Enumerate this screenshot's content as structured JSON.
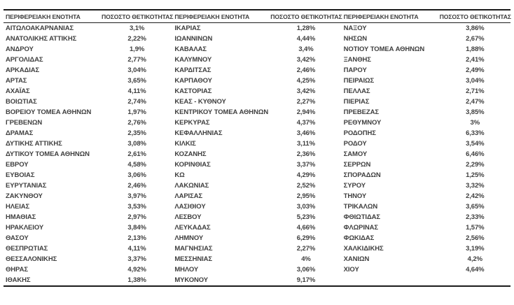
{
  "table": {
    "text_color": "#3f3f3f",
    "border_color": "#1c1c1c",
    "headers": {
      "region": "ΠΕΡΙΦΕΡΕΙΑΚΗ ΕΝΟΤΗΤΑ",
      "positivity": "ΠΟΣΟΣΤΟ ΘΕΤΙΚΟΤΗΤΑΣ"
    },
    "columns": [
      {
        "rows": [
          {
            "region": "ΑΙΤΩΛΟΑΚΑΡΝΑΝΙΑΣ",
            "positivity": "3,1%"
          },
          {
            "region": "ΑΝΑΤΟΛΙΚΗΣ ΑΤΤΙΚΗΣ",
            "positivity": "2,22%"
          },
          {
            "region": "ΑΝΔΡΟΥ",
            "positivity": "1,9%"
          },
          {
            "region": "ΑΡΓΟΛΙΔΑΣ",
            "positivity": "2,77%"
          },
          {
            "region": "ΑΡΚΑΔΙΑΣ",
            "positivity": "3,04%"
          },
          {
            "region": "ΑΡΤΑΣ",
            "positivity": "3,65%"
          },
          {
            "region": "ΑΧΑΪΑΣ",
            "positivity": "4,11%"
          },
          {
            "region": "ΒΟΙΩΤΙΑΣ",
            "positivity": "2,74%"
          },
          {
            "region": "ΒΟΡΕΙΟΥ ΤΟΜΕΑ ΑΘΗΝΩΝ",
            "positivity": "1,97%"
          },
          {
            "region": "ΓΡΕΒΕΝΩΝ",
            "positivity": "2,76%"
          },
          {
            "region": "ΔΡΑΜΑΣ",
            "positivity": "2,35%"
          },
          {
            "region": "ΔΥΤΙΚΗΣ ΑΤΤΙΚΗΣ",
            "positivity": "3,08%"
          },
          {
            "region": "ΔΥΤΙΚΟΥ ΤΟΜΕΑ ΑΘΗΝΩΝ",
            "positivity": "2,61%"
          },
          {
            "region": "ΕΒΡΟΥ",
            "positivity": "4,58%"
          },
          {
            "region": "ΕΥΒΟΙΑΣ",
            "positivity": "3,06%"
          },
          {
            "region": "ΕΥΡΥΤΑΝΙΑΣ",
            "positivity": "2,46%"
          },
          {
            "region": "ΖΑΚΥΝΘΟΥ",
            "positivity": "3,97%"
          },
          {
            "region": "ΗΛΕΙΑΣ",
            "positivity": "3,53%"
          },
          {
            "region": "ΗΜΑΘΙΑΣ",
            "positivity": "2,97%"
          },
          {
            "region": "ΗΡΑΚΛΕΙΟΥ",
            "positivity": "3,84%"
          },
          {
            "region": "ΘΑΣΟΥ",
            "positivity": "2,13%"
          },
          {
            "region": "ΘΕΣΠΡΩΤΙΑΣ",
            "positivity": "4,11%"
          },
          {
            "region": "ΘΕΣΣΑΛΟΝΙΚΗΣ",
            "positivity": "3,37%"
          },
          {
            "region": "ΘΗΡΑΣ",
            "positivity": "4,92%"
          },
          {
            "region": "ΙΘΑΚΗΣ",
            "positivity": "1,38%"
          }
        ]
      },
      {
        "rows": [
          {
            "region": "ΙΚΑΡΙΑΣ",
            "positivity": "1,28%"
          },
          {
            "region": "ΙΩΑΝΝΙΝΩΝ",
            "positivity": "4,44%"
          },
          {
            "region": "ΚΑΒΑΛΑΣ",
            "positivity": "3,4%"
          },
          {
            "region": "ΚΑΛΥΜΝΟΥ",
            "positivity": "3,42%"
          },
          {
            "region": "ΚΑΡΔΙΤΣΑΣ",
            "positivity": "2,46%"
          },
          {
            "region": "ΚΑΡΠΑΘΟΥ",
            "positivity": "4,25%"
          },
          {
            "region": "ΚΑΣΤΟΡΙΑΣ",
            "positivity": "3,42%"
          },
          {
            "region": "ΚΕΑΣ - ΚΥΘΝΟΥ",
            "positivity": "2,27%"
          },
          {
            "region": "ΚΕΝΤΡΙΚΟΥ ΤΟΜΕΑ ΑΘΗΝΩΝ",
            "positivity": "2,94%"
          },
          {
            "region": "ΚΕΡΚΥΡΑΣ",
            "positivity": "4,37%"
          },
          {
            "region": "ΚΕΦΑΛΛΗΝΙΑΣ",
            "positivity": "3,46%"
          },
          {
            "region": "ΚΙΛΚΙΣ",
            "positivity": "3,11%"
          },
          {
            "region": "ΚΟΖΑΝΗΣ",
            "positivity": "2,36%"
          },
          {
            "region": "ΚΟΡΙΝΘΙΑΣ",
            "positivity": "3,37%"
          },
          {
            "region": "ΚΩ",
            "positivity": "4,29%"
          },
          {
            "region": "ΛΑΚΩΝΙΑΣ",
            "positivity": "2,52%"
          },
          {
            "region": "ΛΑΡΙΣΑΣ",
            "positivity": "2,95%"
          },
          {
            "region": "ΛΑΣΙΘΙΟΥ",
            "positivity": "3,03%"
          },
          {
            "region": "ΛΕΣΒΟΥ",
            "positivity": "5,23%"
          },
          {
            "region": "ΛΕΥΚΑΔΑΣ",
            "positivity": "4,66%"
          },
          {
            "region": "ΛΗΜΝΟΥ",
            "positivity": "6,29%"
          },
          {
            "region": "ΜΑΓΝΗΣΙΑΣ",
            "positivity": "2,27%"
          },
          {
            "region": "ΜΕΣΣΗΝΙΑΣ",
            "positivity": "4%"
          },
          {
            "region": "ΜΗΛΟΥ",
            "positivity": "3,06%"
          },
          {
            "region": "ΜΥΚΟΝΟΥ",
            "positivity": "9,17%"
          }
        ]
      },
      {
        "rows": [
          {
            "region": "ΝΑΞΟΥ",
            "positivity": "3,86%"
          },
          {
            "region": "ΝΗΣΩΝ",
            "positivity": "2,67%"
          },
          {
            "region": "ΝΟΤΙΟΥ ΤΟΜΕΑ ΑΘΗΝΩΝ",
            "positivity": "1,88%"
          },
          {
            "region": "ΞΑΝΘΗΣ",
            "positivity": "2,41%"
          },
          {
            "region": "ΠΑΡΟΥ",
            "positivity": "2,49%"
          },
          {
            "region": "ΠΕΙΡΑΙΩΣ",
            "positivity": "3,04%"
          },
          {
            "region": "ΠΕΛΛΑΣ",
            "positivity": "2,71%"
          },
          {
            "region": "ΠΙΕΡΙΑΣ",
            "positivity": "2,47%"
          },
          {
            "region": "ΠΡΕΒΕΖΑΣ",
            "positivity": "3,85%"
          },
          {
            "region": "ΡΕΘΥΜΝΟΥ",
            "positivity": "3%"
          },
          {
            "region": "ΡΟΔΟΠΗΣ",
            "positivity": "6,33%"
          },
          {
            "region": "ΡΟΔΟΥ",
            "positivity": "3,54%"
          },
          {
            "region": "ΣΑΜΟΥ",
            "positivity": "6,46%"
          },
          {
            "region": "ΣΕΡΡΩΝ",
            "positivity": "2,29%"
          },
          {
            "region": "ΣΠΟΡΑΔΩΝ",
            "positivity": "1,25%"
          },
          {
            "region": "ΣΥΡΟΥ",
            "positivity": "3,32%"
          },
          {
            "region": "ΤΗΝΟΥ",
            "positivity": "2,42%"
          },
          {
            "region": "ΤΡΙΚΑΛΩΝ",
            "positivity": "3,65%"
          },
          {
            "region": "ΦΘΙΩΤΙΔΑΣ",
            "positivity": "2,33%"
          },
          {
            "region": "ΦΛΩΡΙΝΑΣ",
            "positivity": "1,57%"
          },
          {
            "region": "ΦΩΚΙΔΑΣ",
            "positivity": "2,56%"
          },
          {
            "region": "ΧΑΛΚΙΔΙΚΗΣ",
            "positivity": "3,19%"
          },
          {
            "region": "ΧΑΝΙΩΝ",
            "positivity": "4,2%"
          },
          {
            "region": "ΧΙΟΥ",
            "positivity": "4,64%"
          }
        ]
      }
    ]
  }
}
